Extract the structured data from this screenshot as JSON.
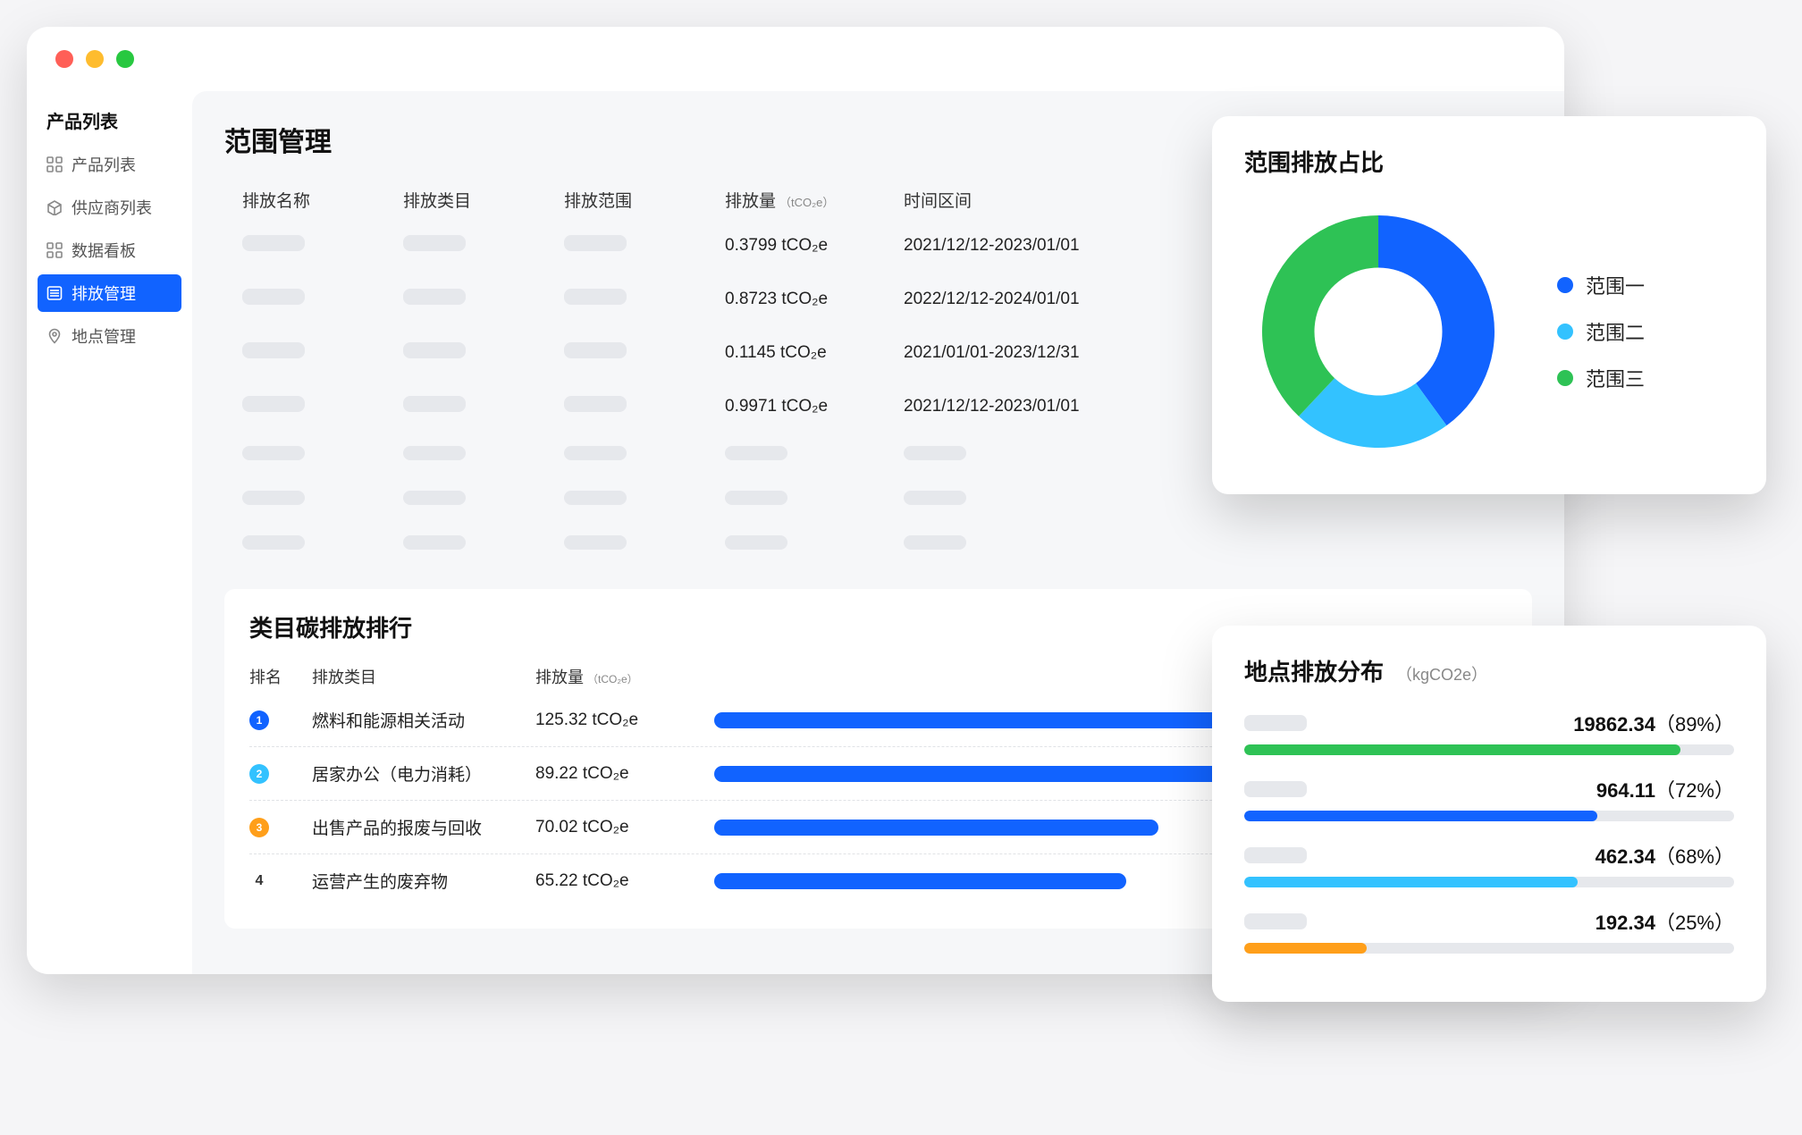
{
  "sidebar": {
    "title": "产品列表",
    "items": [
      {
        "label": "产品列表",
        "icon": "grid"
      },
      {
        "label": "供应商列表",
        "icon": "box"
      },
      {
        "label": "数据看板",
        "icon": "grid"
      },
      {
        "label": "排放管理",
        "icon": "list",
        "active": true
      },
      {
        "label": "地点管理",
        "icon": "pin"
      }
    ]
  },
  "page": {
    "title": "范围管理"
  },
  "table": {
    "columns": {
      "name": "排放名称",
      "category": "排放类目",
      "scope": "排放范围",
      "amount": "排放量",
      "amount_unit": "（tCO₂e）",
      "time": "时间区间"
    },
    "rows": [
      {
        "amount": "0.3799  tCO₂e",
        "time": "2021/12/12-2023/01/01"
      },
      {
        "amount": "0.8723  tCO₂e",
        "time": "2022/12/12-2024/01/01"
      },
      {
        "amount": "0.1145  tCO₂e",
        "time": "2021/01/01-2023/12/31"
      },
      {
        "amount": "0.9971  tCO₂e",
        "time": "2021/12/12-2023/01/01"
      }
    ],
    "placeholder_row_count": 3
  },
  "rank": {
    "title": "类目碳排放排行",
    "columns": {
      "rank": "排名",
      "category": "排放类目",
      "amount": "排放量",
      "amount_unit": "（tCO₂e）"
    },
    "max_bar": 125.32,
    "rows": [
      {
        "rank": "1",
        "badge_color": "#1163ff",
        "category": "燃料和能源相关活动",
        "amount": "125.32  tCO₂e",
        "bar": 100
      },
      {
        "rank": "2",
        "badge_color": "#33c2ff",
        "category": "居家办公（电力消耗）",
        "amount": "89.22  tCO₂e",
        "bar": 71
      },
      {
        "rank": "3",
        "badge_color": "#ff9f1a",
        "category": "出售产品的报废与回收",
        "amount": "70.02  tCO₂e",
        "bar": 56
      },
      {
        "rank": "4",
        "badge_color": "plain",
        "category": "运营产生的废弃物",
        "amount": "65.22  tCO₂e",
        "bar": 52
      }
    ]
  },
  "pie": {
    "title": "范围排放占比",
    "type": "donut",
    "inner_radius_pct": 55,
    "background_color": "#ffffff",
    "slices": [
      {
        "label": "范围一",
        "color": "#1163ff",
        "value": 40
      },
      {
        "label": "范围二",
        "color": "#33c2ff",
        "value": 22
      },
      {
        "label": "范围三",
        "color": "#2ec255",
        "value": 38
      }
    ]
  },
  "location": {
    "title": "地点排放分布",
    "unit": "（kgCO2e）",
    "rows": [
      {
        "value": "19862.34",
        "pct": "（89%）",
        "bar": 89,
        "color": "#2ec255"
      },
      {
        "value": "964.11",
        "pct": "（72%）",
        "bar": 72,
        "color": "#1163ff"
      },
      {
        "value": "462.34",
        "pct": "（68%）",
        "bar": 68,
        "color": "#33c2ff"
      },
      {
        "value": "192.34",
        "pct": "（25%）",
        "bar": 25,
        "color": "#ff9f1a"
      }
    ]
  },
  "colors": {
    "primary": "#1163ff",
    "skeleton": "#e6e8ec",
    "text": "#111111",
    "muted": "#888888"
  }
}
